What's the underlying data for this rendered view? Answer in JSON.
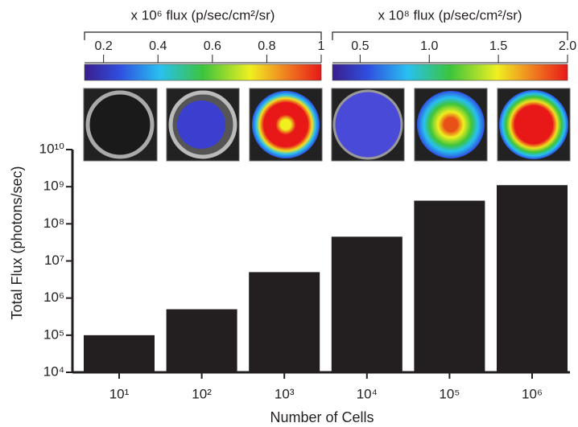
{
  "chart_data": {
    "type": "bar",
    "log_scale": true,
    "x_label": "Number of Cells",
    "y_label": "Total Flux (photons/sec)",
    "categories": [
      "10¹",
      "10²",
      "10³",
      "10⁴",
      "10⁵",
      "10⁶"
    ],
    "values": [
      100000,
      500000,
      5000000,
      45000000,
      420000000,
      1100000000
    ],
    "color": "#231f20",
    "ylim": [
      10000,
      10000000000
    ],
    "yticks": [
      {
        "value": 10000,
        "label": "10⁴"
      },
      {
        "value": 100000,
        "label": "10⁵"
      },
      {
        "value": 1000000,
        "label": "10⁶"
      },
      {
        "value": 10000000,
        "label": "10⁷"
      },
      {
        "value": 100000000,
        "label": "10⁸"
      },
      {
        "value": 1000000000,
        "label": "10⁹"
      },
      {
        "value": 10000000000,
        "label": "10¹⁰"
      }
    ]
  },
  "colorbars": [
    {
      "label": "x 10⁶ flux (p/sec/cm²/sr)",
      "lim": [
        0.13,
        1
      ],
      "ticks": [
        0.2,
        0.4,
        0.6,
        0.8,
        1
      ]
    },
    {
      "label": "x 10⁸ flux (p/sec/cm²/sr)",
      "lim": [
        0.3,
        2
      ],
      "ticks": [
        0.5,
        {
          "value": 1,
          "label": "1.0"
        },
        1.5,
        {
          "value": 2,
          "label": "2.0"
        }
      ]
    }
  ]
}
